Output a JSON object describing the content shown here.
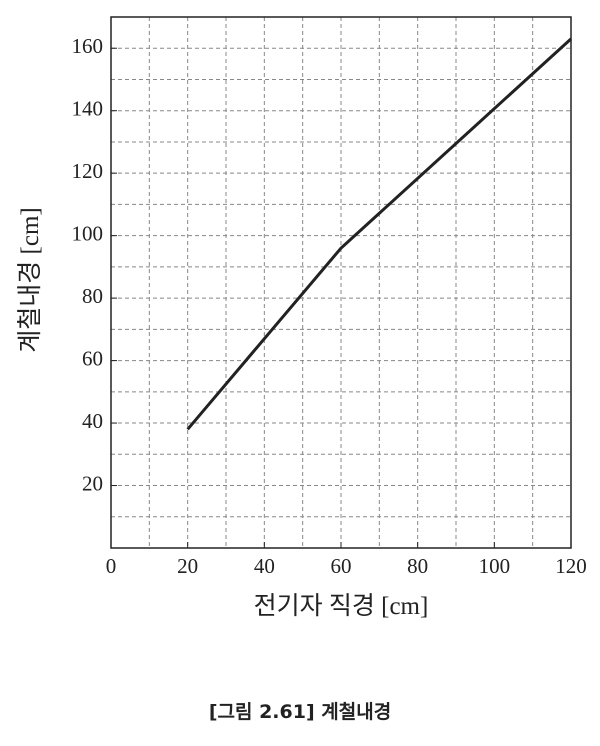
{
  "chart_data": {
    "type": "line",
    "x_label": "전기자 직경 [cm]",
    "y_label": "계철내경 [cm]",
    "caption": "[그림 2.61] 계철내경",
    "series": [
      {
        "x": [
          20,
          60,
          120
        ],
        "values": [
          38,
          96,
          163
        ],
        "color": "#222222"
      }
    ],
    "xlim": [
      0,
      120
    ],
    "ylim": [
      0,
      170
    ],
    "xticks": [
      0,
      20,
      40,
      60,
      80,
      100,
      120
    ],
    "yticks": [
      20,
      40,
      60,
      80,
      100,
      120,
      140,
      160
    ],
    "xgrid": [
      10,
      20,
      30,
      40,
      50,
      60,
      70,
      80,
      90,
      100,
      110
    ],
    "ygrid": [
      10,
      20,
      30,
      40,
      50,
      60,
      70,
      80,
      90,
      100,
      110,
      120,
      130,
      140,
      150,
      160
    ],
    "grid": true
  }
}
